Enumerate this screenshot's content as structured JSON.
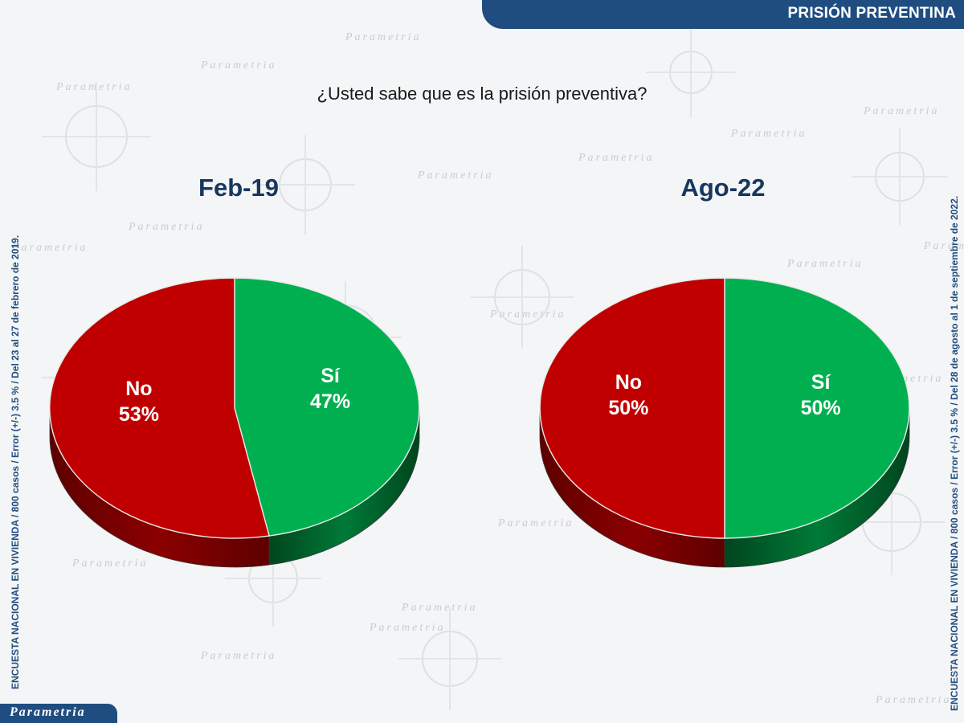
{
  "header": {
    "title": "PRISIÓN PREVENTINA"
  },
  "question": "¿Usted sabe que es la prisión preventiva?",
  "side_notes": {
    "left": "ENCUESTA NACIONAL EN VIVIENDA / 800 casos / Error (+/-) 3.5 % / Del 23 al 27 de febrero de 2019.",
    "right": "ENCUESTA NACIONAL EN VIVIENDA / 800 casos / Error (+/-) 3.5 % / Del 28 de agosto al 1 de septiembre de 2022."
  },
  "logo": {
    "text": "Parametria",
    "watermark": "Parametria"
  },
  "colors": {
    "no": "#c00000",
    "no_dark": "#5e0000",
    "si": "#00b050",
    "si_dark": "#00451e",
    "header": "#1f4d80",
    "title": "#17375e"
  },
  "chart_data": [
    {
      "type": "pie",
      "title": "Feb-19",
      "slices": [
        {
          "label": "Sí",
          "value": 47,
          "display": "47%",
          "color": "#00b050"
        },
        {
          "label": "No",
          "value": 53,
          "display": "53%",
          "color": "#c00000"
        }
      ]
    },
    {
      "type": "pie",
      "title": "Ago-22",
      "slices": [
        {
          "label": "Sí",
          "value": 50,
          "display": "50%",
          "color": "#00b050"
        },
        {
          "label": "No",
          "value": 50,
          "display": "50%",
          "color": "#c00000"
        }
      ]
    }
  ]
}
